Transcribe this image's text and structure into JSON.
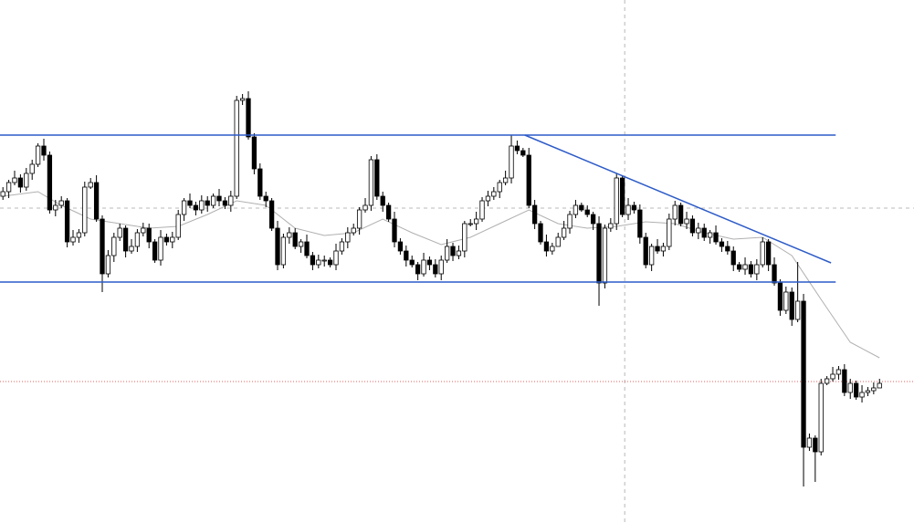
{
  "chart_data": {
    "type": "candlestick",
    "xlim": [
      -0.5,
      155.9
    ],
    "ylim": [
      0,
      573
    ],
    "up_color": "#ffffff",
    "down_color": "#000000",
    "outline_color": "#000000",
    "open": [
      358,
      363,
      373,
      378,
      368,
      383,
      393,
      413,
      403,
      343,
      348,
      353,
      308,
      313,
      318,
      368,
      373,
      333,
      273,
      293,
      313,
      323,
      298,
      303,
      318,
      323,
      308,
      288,
      313,
      308,
      313,
      338,
      353,
      348,
      343,
      353,
      348,
      358,
      353,
      348,
      358,
      463,
      465,
      423,
      388,
      358,
      353,
      323,
      283,
      313,
      318,
      303,
      308,
      293,
      283,
      288,
      288,
      283,
      298,
      308,
      318,
      323,
      343,
      348,
      398,
      358,
      348,
      333,
      308,
      298,
      288,
      283,
      273,
      288,
      283,
      273,
      288,
      303,
      293,
      298,
      328,
      328,
      333,
      353,
      358,
      363,
      373,
      378,
      413,
      408,
      403,
      348,
      328,
      308,
      298,
      303,
      313,
      323,
      338,
      348,
      343,
      338,
      328,
      263,
      323,
      328,
      378,
      338,
      348,
      343,
      313,
      283,
      303,
      298,
      303,
      333,
      348,
      328,
      333,
      318,
      323,
      313,
      318,
      308,
      303,
      298,
      283,
      278,
      283,
      273,
      283,
      308,
      283,
      263,
      233,
      253,
      223,
      243,
      83,
      93,
      78,
      153,
      158,
      163,
      168,
      143,
      153,
      138,
      143,
      145,
      148
    ],
    "high": [
      368,
      376,
      386,
      382,
      389,
      398,
      416,
      421,
      407,
      354,
      358,
      356,
      321,
      322,
      374,
      378,
      381,
      337,
      299,
      318,
      328,
      326,
      311,
      322,
      329,
      328,
      311,
      321,
      317,
      319,
      343,
      356,
      361,
      352,
      359,
      358,
      361,
      366,
      357,
      364,
      468,
      470,
      473,
      427,
      394,
      363,
      356,
      331,
      317,
      324,
      323,
      311,
      316,
      297,
      294,
      293,
      291,
      306,
      312,
      324,
      328,
      346,
      356,
      402,
      404,
      363,
      351,
      341,
      312,
      304,
      293,
      286,
      296,
      292,
      289,
      293,
      311,
      307,
      304,
      331,
      333,
      341,
      357,
      364,
      368,
      376,
      386,
      425,
      419,
      411,
      411,
      354,
      331,
      316,
      307,
      318,
      331,
      342,
      354,
      351,
      348,
      341,
      336,
      327,
      334,
      383,
      381,
      356,
      352,
      349,
      318,
      306,
      311,
      307,
      339,
      353,
      351,
      341,
      337,
      329,
      328,
      321,
      326,
      312,
      309,
      303,
      286,
      291,
      287,
      289,
      313,
      311,
      291,
      267,
      259,
      258,
      286,
      251,
      98,
      96,
      158,
      161,
      171,
      172,
      174,
      158,
      156,
      151,
      149,
      154,
      158
    ],
    "low": [
      354,
      356,
      370,
      362,
      364,
      376,
      390,
      397,
      339,
      336,
      345,
      302,
      304,
      307,
      314,
      366,
      330,
      253,
      269,
      286,
      309,
      291,
      295,
      297,
      314,
      301,
      285,
      282,
      304,
      301,
      310,
      331,
      345,
      337,
      339,
      341,
      345,
      347,
      344,
      341,
      355,
      458,
      420,
      382,
      354,
      346,
      320,
      277,
      279,
      306,
      300,
      296,
      290,
      277,
      279,
      281,
      280,
      277,
      294,
      301,
      315,
      316,
      340,
      342,
      354,
      341,
      330,
      302,
      294,
      281,
      280,
      266,
      270,
      277,
      269,
      266,
      285,
      287,
      289,
      291,
      325,
      321,
      330,
      347,
      354,
      356,
      370,
      372,
      404,
      401,
      345,
      322,
      305,
      292,
      294,
      306,
      310,
      317,
      334,
      341,
      335,
      321,
      238,
      257,
      319,
      321,
      335,
      332,
      339,
      306,
      279,
      276,
      295,
      292,
      299,
      326,
      325,
      322,
      314,
      311,
      309,
      306,
      305,
      297,
      294,
      276,
      275,
      272,
      269,
      266,
      280,
      276,
      260,
      227,
      229,
      216,
      220,
      40,
      79,
      45,
      74,
      151,
      155,
      157,
      139,
      136,
      135,
      132,
      139,
      141,
      150
    ],
    "close": [
      363,
      373,
      378,
      368,
      383,
      393,
      413,
      403,
      343,
      348,
      353,
      308,
      313,
      318,
      368,
      373,
      333,
      273,
      293,
      313,
      323,
      298,
      303,
      318,
      323,
      308,
      288,
      313,
      308,
      313,
      338,
      353,
      348,
      343,
      353,
      348,
      358,
      353,
      348,
      358,
      463,
      465,
      423,
      388,
      358,
      353,
      323,
      283,
      313,
      318,
      303,
      308,
      293,
      283,
      288,
      288,
      283,
      298,
      308,
      318,
      323,
      343,
      348,
      398,
      358,
      348,
      333,
      308,
      298,
      288,
      283,
      273,
      288,
      283,
      273,
      288,
      303,
      293,
      298,
      328,
      328,
      333,
      353,
      358,
      363,
      373,
      378,
      413,
      408,
      403,
      348,
      328,
      308,
      298,
      303,
      313,
      323,
      338,
      348,
      343,
      338,
      328,
      263,
      323,
      328,
      378,
      338,
      348,
      343,
      313,
      283,
      303,
      298,
      303,
      333,
      348,
      328,
      333,
      318,
      323,
      313,
      318,
      308,
      303,
      298,
      283,
      278,
      283,
      273,
      283,
      308,
      283,
      263,
      233,
      253,
      223,
      243,
      83,
      93,
      78,
      153,
      158,
      163,
      168,
      143,
      153,
      138,
      143,
      145,
      148,
      153
    ],
    "ma": {
      "color": "#b0b0b0",
      "x": [
        0,
        6,
        10,
        15,
        20,
        25,
        30,
        35,
        40,
        45,
        50,
        55,
        60,
        65,
        70,
        75,
        80,
        85,
        90,
        95,
        100,
        105,
        110,
        115,
        120,
        125,
        130,
        135,
        140,
        145,
        150
      ],
      "values": [
        358,
        363,
        348,
        333,
        328,
        323,
        325,
        338,
        353,
        348,
        323,
        315,
        318,
        333,
        318,
        305,
        313,
        328,
        343,
        328,
        323,
        325,
        330,
        328,
        318,
        311,
        313,
        293,
        245,
        198,
        181
      ]
    },
    "hlines": [
      {
        "value": 425,
        "x_end": 142.5,
        "color": "#2d5bc8"
      },
      {
        "value": 264,
        "x_end": 142.5,
        "color": "#2d5bc8"
      }
    ],
    "trendline": {
      "color": "#2d5bc8",
      "x": [
        89.3,
        141.7
      ],
      "y": [
        425,
        285
      ]
    },
    "crosshair": {
      "x": 106.4,
      "y": 345,
      "color": "#b8b8b8"
    },
    "price_line": {
      "value": 155,
      "color": "#e06060"
    }
  }
}
